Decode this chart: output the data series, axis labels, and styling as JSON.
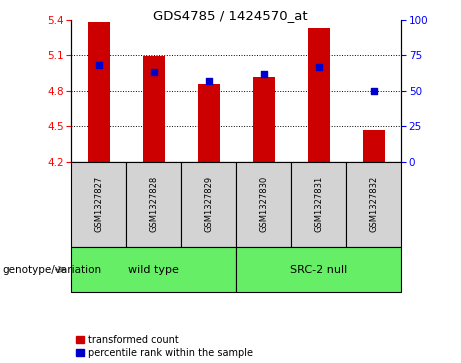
{
  "title": "GDS4785 / 1424570_at",
  "samples": [
    "GSM1327827",
    "GSM1327828",
    "GSM1327829",
    "GSM1327830",
    "GSM1327831",
    "GSM1327832"
  ],
  "red_values": [
    5.38,
    5.095,
    4.86,
    4.92,
    5.33,
    4.47
  ],
  "blue_percentiles": [
    68,
    63,
    57,
    62,
    67,
    50
  ],
  "ylim_left": [
    4.2,
    5.4
  ],
  "ylim_right": [
    0,
    100
  ],
  "yticks_left": [
    4.2,
    4.5,
    4.8,
    5.1,
    5.4
  ],
  "yticks_right": [
    0,
    25,
    50,
    75,
    100
  ],
  "dotted_lines": [
    4.5,
    4.8,
    5.1
  ],
  "bar_color": "#CC0000",
  "blue_color": "#0000CC",
  "bar_width": 0.4,
  "base_value": 4.2,
  "background_color": "#ffffff",
  "gray_cell_color": "#d3d3d3",
  "green_color": "#66ee66",
  "legend_red_label": "transformed count",
  "legend_blue_label": "percentile rank within the sample",
  "genotype_label": "genotype/variation",
  "group_labels": [
    "wild type",
    "SRC-2 null"
  ],
  "group_sizes": [
    3,
    3
  ]
}
